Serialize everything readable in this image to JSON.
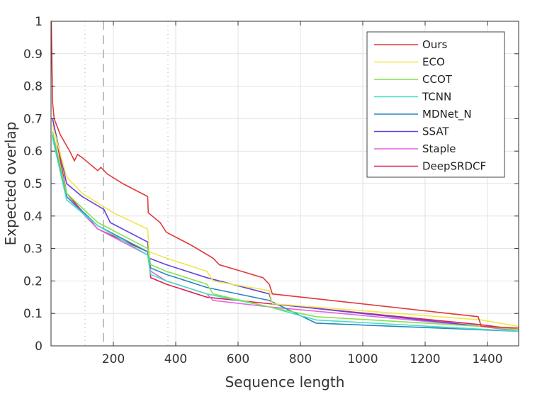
{
  "chart_data": {
    "type": "line",
    "title": "",
    "xlabel": "Sequence length",
    "ylabel": "Expected overlap",
    "xlim": [
      0,
      1500
    ],
    "ylim": [
      0,
      1
    ],
    "xticks": [
      200,
      400,
      600,
      800,
      1000,
      1200,
      1400
    ],
    "yticks": [
      0,
      0.1,
      0.2,
      0.3,
      0.4,
      0.5,
      0.6,
      0.7,
      0.8,
      0.9,
      1
    ],
    "ytick_labels": [
      "0",
      "0.1",
      "0.2",
      "0.3",
      "0.4",
      "0.5",
      "0.6",
      "0.7",
      "0.8",
      "0.9",
      "1"
    ],
    "grid": true,
    "legend_position": "top-right",
    "vertical_markers": [
      {
        "x": 109,
        "style": "dotted"
      },
      {
        "x": 168,
        "style": "dashed"
      },
      {
        "x": 375,
        "style": "dotted"
      }
    ],
    "series": [
      {
        "name": "Ours",
        "color": "#e03a3a",
        "points": [
          [
            1,
            1.0
          ],
          [
            5,
            0.75
          ],
          [
            10,
            0.7
          ],
          [
            30,
            0.65
          ],
          [
            60,
            0.6
          ],
          [
            75,
            0.57
          ],
          [
            85,
            0.59
          ],
          [
            100,
            0.58
          ],
          [
            150,
            0.54
          ],
          [
            160,
            0.55
          ],
          [
            180,
            0.53
          ],
          [
            230,
            0.5
          ],
          [
            310,
            0.46
          ],
          [
            312,
            0.41
          ],
          [
            350,
            0.38
          ],
          [
            370,
            0.35
          ],
          [
            450,
            0.31
          ],
          [
            520,
            0.27
          ],
          [
            540,
            0.25
          ],
          [
            680,
            0.21
          ],
          [
            700,
            0.19
          ],
          [
            710,
            0.16
          ],
          [
            1370,
            0.09
          ],
          [
            1380,
            0.06
          ],
          [
            1500,
            0.055
          ]
        ]
      },
      {
        "name": "ECO",
        "color": "#f2e64a",
        "points": [
          [
            5,
            0.68
          ],
          [
            50,
            0.52
          ],
          [
            100,
            0.47
          ],
          [
            200,
            0.41
          ],
          [
            310,
            0.36
          ],
          [
            315,
            0.29
          ],
          [
            370,
            0.27
          ],
          [
            500,
            0.23
          ],
          [
            520,
            0.2
          ],
          [
            700,
            0.17
          ],
          [
            710,
            0.13
          ],
          [
            1380,
            0.08
          ],
          [
            1500,
            0.06
          ]
        ]
      },
      {
        "name": "CCOT",
        "color": "#86e24a",
        "points": [
          [
            5,
            0.66
          ],
          [
            50,
            0.47
          ],
          [
            150,
            0.38
          ],
          [
            310,
            0.3
          ],
          [
            320,
            0.25
          ],
          [
            370,
            0.23
          ],
          [
            500,
            0.19
          ],
          [
            520,
            0.16
          ],
          [
            700,
            0.12
          ],
          [
            850,
            0.09
          ],
          [
            1380,
            0.06
          ],
          [
            1500,
            0.05
          ]
        ]
      },
      {
        "name": "TCNN",
        "color": "#44e0c4",
        "points": [
          [
            5,
            0.64
          ],
          [
            50,
            0.45
          ],
          [
            150,
            0.37
          ],
          [
            310,
            0.28
          ],
          [
            320,
            0.22
          ],
          [
            370,
            0.2
          ],
          [
            500,
            0.16
          ],
          [
            700,
            0.12
          ],
          [
            850,
            0.08
          ],
          [
            1500,
            0.045
          ]
        ]
      },
      {
        "name": "MDNet_N",
        "color": "#2a86c4",
        "points": [
          [
            5,
            0.65
          ],
          [
            50,
            0.46
          ],
          [
            150,
            0.37
          ],
          [
            310,
            0.29
          ],
          [
            320,
            0.24
          ],
          [
            370,
            0.22
          ],
          [
            500,
            0.18
          ],
          [
            700,
            0.14
          ],
          [
            850,
            0.07
          ],
          [
            1500,
            0.045
          ]
        ]
      },
      {
        "name": "SSAT",
        "color": "#6444e0",
        "points": [
          [
            5,
            0.7
          ],
          [
            50,
            0.5
          ],
          [
            100,
            0.46
          ],
          [
            170,
            0.42
          ],
          [
            190,
            0.38
          ],
          [
            310,
            0.32
          ],
          [
            315,
            0.27
          ],
          [
            370,
            0.25
          ],
          [
            500,
            0.21
          ],
          [
            700,
            0.16
          ],
          [
            710,
            0.13
          ],
          [
            1380,
            0.06
          ],
          [
            1500,
            0.05
          ]
        ]
      },
      {
        "name": "Staple",
        "color": "#e464e4",
        "points": [
          [
            5,
            0.66
          ],
          [
            50,
            0.46
          ],
          [
            150,
            0.36
          ],
          [
            310,
            0.28
          ],
          [
            320,
            0.23
          ],
          [
            370,
            0.2
          ],
          [
            500,
            0.16
          ],
          [
            520,
            0.14
          ],
          [
            700,
            0.12
          ],
          [
            1380,
            0.06
          ],
          [
            1500,
            0.045
          ]
        ]
      },
      {
        "name": "DeepSRDCF",
        "color": "#e0204e",
        "points": [
          [
            5,
            0.7
          ],
          [
            50,
            0.47
          ],
          [
            150,
            0.36
          ],
          [
            310,
            0.29
          ],
          [
            320,
            0.21
          ],
          [
            370,
            0.19
          ],
          [
            500,
            0.15
          ],
          [
            700,
            0.13
          ],
          [
            1380,
            0.065
          ],
          [
            1500,
            0.05
          ]
        ]
      }
    ]
  }
}
